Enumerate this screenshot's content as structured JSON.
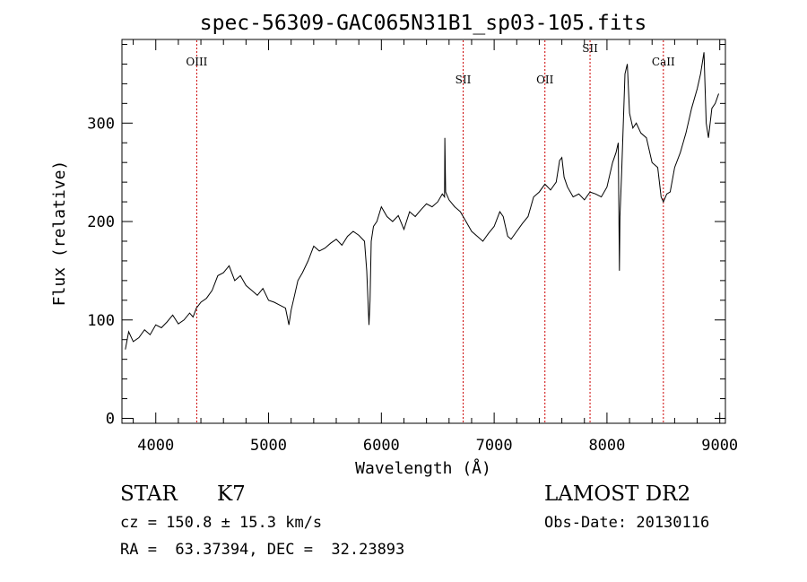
{
  "chart_data": {
    "type": "line",
    "title": "spec-56309-GAC065N31B1_sp03-105.fits",
    "xlabel": "Wavelength (Å)",
    "ylabel": "Flux (relative)",
    "xlim": [
      3700,
      9050
    ],
    "ylim": [
      -5,
      385
    ],
    "grid": false,
    "xticks": [
      4000,
      5000,
      6000,
      7000,
      8000,
      9000
    ],
    "yticks": [
      0,
      100,
      200,
      300
    ],
    "xtick_labels": [
      "4000",
      "5000",
      "6000",
      "7000",
      "8000",
      "9000"
    ],
    "ytick_labels": [
      "0",
      "100",
      "200",
      "300"
    ],
    "lines": [
      {
        "label": "OIII",
        "x": 4363
      },
      {
        "label": "SII",
        "x": 6725
      },
      {
        "label": "OII",
        "x": 7450
      },
      {
        "label": "SII",
        "x": 7850
      },
      {
        "label": "CaII",
        "x": 8500
      }
    ],
    "series": [
      {
        "x": [
          3730,
          3760,
          3800,
          3850,
          3900,
          3950,
          4000,
          4050,
          4100,
          4150,
          4200,
          4250,
          4300,
          4330,
          4360,
          4400,
          4450,
          4500,
          4550,
          4600,
          4650,
          4700,
          4750,
          4800,
          4850,
          4900,
          4950,
          5000,
          5050,
          5100,
          5150,
          5180,
          5200,
          5230,
          5260,
          5300,
          5350,
          5400,
          5450,
          5500,
          5550,
          5600,
          5650,
          5700,
          5750,
          5800,
          5850,
          5870,
          5890,
          5900,
          5910,
          5930,
          5960,
          6000,
          6050,
          6100,
          6150,
          6200,
          6250,
          6300,
          6350,
          6400,
          6450,
          6500,
          6540,
          6560,
          6563,
          6570,
          6600,
          6650,
          6700,
          6750,
          6800,
          6850,
          6900,
          6950,
          7000,
          7050,
          7080,
          7120,
          7150,
          7200,
          7250,
          7300,
          7350,
          7400,
          7450,
          7500,
          7550,
          7580,
          7600,
          7620,
          7650,
          7700,
          7750,
          7800,
          7850,
          7900,
          7950,
          8000,
          8050,
          8080,
          8100,
          8110,
          8115,
          8130,
          8160,
          8180,
          8200,
          8230,
          8260,
          8300,
          8350,
          8400,
          8450,
          8480,
          8500,
          8530,
          8560,
          8600,
          8650,
          8700,
          8750,
          8800,
          8830,
          8860,
          8880,
          8900,
          8930,
          8960,
          8990
        ],
        "y": [
          70,
          88,
          78,
          82,
          90,
          85,
          95,
          92,
          98,
          105,
          96,
          100,
          107,
          103,
          112,
          118,
          122,
          130,
          145,
          148,
          155,
          140,
          145,
          135,
          130,
          125,
          132,
          120,
          118,
          115,
          112,
          95,
          110,
          125,
          140,
          148,
          160,
          175,
          170,
          173,
          178,
          182,
          176,
          185,
          190,
          186,
          180,
          150,
          95,
          120,
          180,
          195,
          200,
          215,
          205,
          200,
          206,
          192,
          210,
          205,
          212,
          218,
          215,
          220,
          228,
          225,
          285,
          230,
          222,
          215,
          210,
          200,
          190,
          185,
          180,
          188,
          195,
          210,
          205,
          185,
          182,
          190,
          198,
          205,
          225,
          230,
          238,
          232,
          240,
          262,
          265,
          245,
          235,
          225,
          228,
          222,
          230,
          228,
          225,
          235,
          260,
          270,
          280,
          150,
          205,
          250,
          350,
          360,
          310,
          295,
          300,
          290,
          285,
          260,
          255,
          225,
          220,
          228,
          230,
          255,
          270,
          290,
          315,
          335,
          350,
          372,
          300,
          285,
          315,
          320,
          330
        ]
      }
    ]
  },
  "footer": {
    "object_type": "STAR",
    "subclass": "K7",
    "survey": "LAMOST DR2",
    "cz": "cz = 150.8 ± 15.3 km/s",
    "obs_date": "Obs-Date: 20130116",
    "radec": "RA =  63.37394, DEC =  32.23893"
  }
}
